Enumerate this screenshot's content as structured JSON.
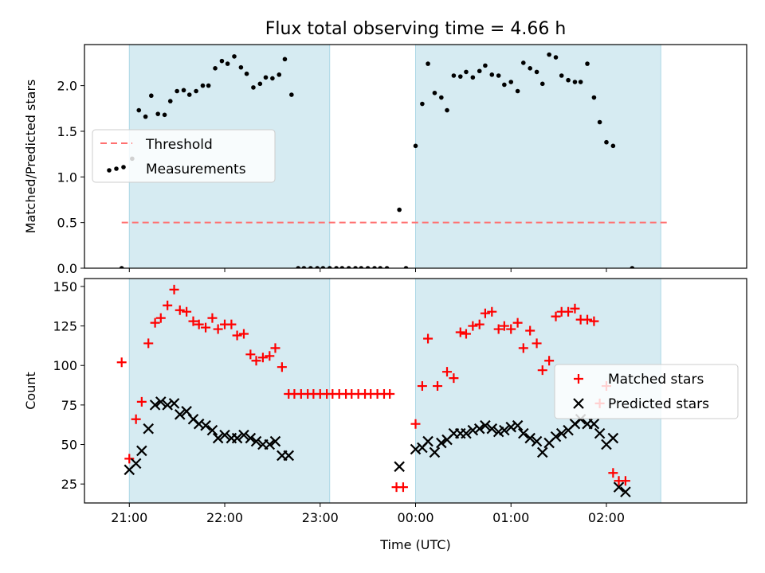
{
  "chart_data": [
    {
      "type": "scatter",
      "title": "Flux total observing time = 4.66 h",
      "xlabel": "",
      "ylabel": "Matched/Predicted stars",
      "xlim": [
        -3.47,
        3.47
      ],
      "ylim": [
        0,
        2.45
      ],
      "yticks": [
        0.0,
        0.5,
        1.0,
        1.5,
        2.0
      ],
      "ytick_labels": [
        "0.0",
        "0.5",
        "1.0",
        "1.5",
        "2.0"
      ],
      "shaded_spans": [
        [
          -3.0,
          -0.9
        ],
        [
          0.0,
          2.57
        ]
      ],
      "threshold": {
        "name": "Threshold",
        "y": 0.5,
        "x": [
          -3.08,
          2.65
        ],
        "color": "#ff7070"
      },
      "series": [
        {
          "name": "Measurements",
          "color": "#000000",
          "points": [
            [
              -3.08,
              0.0
            ],
            [
              -2.97,
              1.2
            ],
            [
              -2.9,
              1.73
            ],
            [
              -2.83,
              1.66
            ],
            [
              -2.77,
              1.89
            ],
            [
              -2.7,
              1.69
            ],
            [
              -2.63,
              1.68
            ],
            [
              -2.57,
              1.83
            ],
            [
              -2.5,
              1.94
            ],
            [
              -2.43,
              1.95
            ],
            [
              -2.37,
              1.9
            ],
            [
              -2.3,
              1.94
            ],
            [
              -2.23,
              2.0
            ],
            [
              -2.17,
              2.0
            ],
            [
              -2.1,
              2.19
            ],
            [
              -2.03,
              2.27
            ],
            [
              -1.97,
              2.24
            ],
            [
              -1.9,
              2.32
            ],
            [
              -1.83,
              2.2
            ],
            [
              -1.77,
              2.13
            ],
            [
              -1.7,
              1.98
            ],
            [
              -1.63,
              2.02
            ],
            [
              -1.57,
              2.09
            ],
            [
              -1.5,
              2.08
            ],
            [
              -1.43,
              2.12
            ],
            [
              -1.37,
              2.29
            ],
            [
              -1.3,
              1.9
            ],
            [
              -1.23,
              0.0
            ],
            [
              -1.17,
              0.0
            ],
            [
              -1.1,
              0.0
            ],
            [
              -1.03,
              0.0
            ],
            [
              -0.97,
              0.0
            ],
            [
              -0.9,
              0.0
            ],
            [
              -0.83,
              0.0
            ],
            [
              -0.77,
              0.0
            ],
            [
              -0.7,
              0.0
            ],
            [
              -0.63,
              0.0
            ],
            [
              -0.57,
              0.0
            ],
            [
              -0.5,
              0.0
            ],
            [
              -0.43,
              0.0
            ],
            [
              -0.37,
              0.0
            ],
            [
              -0.3,
              0.0
            ],
            [
              -0.17,
              0.64
            ],
            [
              -0.1,
              0.0
            ],
            [
              0.0,
              1.34
            ],
            [
              0.07,
              1.8
            ],
            [
              0.13,
              2.24
            ],
            [
              0.2,
              1.92
            ],
            [
              0.27,
              1.87
            ],
            [
              0.33,
              1.73
            ],
            [
              0.4,
              2.11
            ],
            [
              0.47,
              2.1
            ],
            [
              0.53,
              2.15
            ],
            [
              0.6,
              2.09
            ],
            [
              0.67,
              2.16
            ],
            [
              0.73,
              2.22
            ],
            [
              0.8,
              2.12
            ],
            [
              0.87,
              2.11
            ],
            [
              0.93,
              2.01
            ],
            [
              1.0,
              2.04
            ],
            [
              1.07,
              1.94
            ],
            [
              1.13,
              2.25
            ],
            [
              1.2,
              2.19
            ],
            [
              1.27,
              2.15
            ],
            [
              1.33,
              2.02
            ],
            [
              1.4,
              2.34
            ],
            [
              1.47,
              2.31
            ],
            [
              1.53,
              2.11
            ],
            [
              1.6,
              2.06
            ],
            [
              1.67,
              2.04
            ],
            [
              1.73,
              2.04
            ],
            [
              1.8,
              2.24
            ],
            [
              1.87,
              1.87
            ],
            [
              1.93,
              1.6
            ],
            [
              2.0,
              1.38
            ],
            [
              2.07,
              1.34
            ],
            [
              2.27,
              0.0
            ]
          ]
        }
      ],
      "legend": {
        "position": "center-left"
      }
    },
    {
      "type": "scatter",
      "title": "",
      "xlabel": "Time (UTC)",
      "ylabel": "Count",
      "xlim": [
        -3.47,
        3.47
      ],
      "ylim": [
        13,
        155
      ],
      "yticks": [
        25,
        50,
        75,
        100,
        125,
        150
      ],
      "ytick_labels": [
        "25",
        "50",
        "75",
        "100",
        "125",
        "150"
      ],
      "xticks": [
        -3,
        -2,
        -1,
        0,
        1,
        2
      ],
      "xtick_labels": [
        "21:00",
        "22:00",
        "23:00",
        "00:00",
        "01:00",
        "02:00"
      ],
      "shaded_spans": [
        [
          -3.0,
          -0.9
        ],
        [
          0.0,
          2.57
        ]
      ],
      "series": [
        {
          "name": "Matched stars",
          "color": "#ff0000",
          "marker": "plus",
          "points": [
            [
              -3.08,
              102
            ],
            [
              -3.0,
              41
            ],
            [
              -2.93,
              66
            ],
            [
              -2.87,
              77
            ],
            [
              -2.8,
              114
            ],
            [
              -2.73,
              127
            ],
            [
              -2.67,
              130
            ],
            [
              -2.6,
              138
            ],
            [
              -2.53,
              148
            ],
            [
              -2.47,
              135
            ],
            [
              -2.4,
              134
            ],
            [
              -2.33,
              128
            ],
            [
              -2.27,
              126
            ],
            [
              -2.2,
              124
            ],
            [
              -2.13,
              130
            ],
            [
              -2.07,
              123
            ],
            [
              -2.0,
              126
            ],
            [
              -1.93,
              126
            ],
            [
              -1.87,
              119
            ],
            [
              -1.8,
              120
            ],
            [
              -1.73,
              107
            ],
            [
              -1.67,
              103
            ],
            [
              -1.6,
              105
            ],
            [
              -1.53,
              106
            ],
            [
              -1.47,
              111
            ],
            [
              -1.4,
              99
            ],
            [
              -1.33,
              82
            ],
            [
              -1.27,
              82
            ],
            [
              -1.2,
              82
            ],
            [
              -1.13,
              82
            ],
            [
              -1.07,
              82
            ],
            [
              -1.0,
              82
            ],
            [
              -0.93,
              82
            ],
            [
              -0.87,
              82
            ],
            [
              -0.8,
              82
            ],
            [
              -0.73,
              82
            ],
            [
              -0.67,
              82
            ],
            [
              -0.6,
              82
            ],
            [
              -0.53,
              82
            ],
            [
              -0.47,
              82
            ],
            [
              -0.4,
              82
            ],
            [
              -0.33,
              82
            ],
            [
              -0.27,
              82
            ],
            [
              -0.2,
              23
            ],
            [
              -0.13,
              23
            ],
            [
              0.0,
              63
            ],
            [
              0.07,
              87
            ],
            [
              0.13,
              117
            ],
            [
              0.23,
              87
            ],
            [
              0.33,
              96
            ],
            [
              0.4,
              92
            ],
            [
              0.47,
              121
            ],
            [
              0.53,
              120
            ],
            [
              0.6,
              125
            ],
            [
              0.67,
              126
            ],
            [
              0.73,
              133
            ],
            [
              0.8,
              134
            ],
            [
              0.87,
              123
            ],
            [
              0.93,
              125
            ],
            [
              1.0,
              123
            ],
            [
              1.07,
              127
            ],
            [
              1.13,
              111
            ],
            [
              1.2,
              122
            ],
            [
              1.27,
              114
            ],
            [
              1.33,
              97
            ],
            [
              1.4,
              103
            ],
            [
              1.47,
              131
            ],
            [
              1.53,
              134
            ],
            [
              1.6,
              134
            ],
            [
              1.67,
              136
            ],
            [
              1.73,
              129
            ],
            [
              1.8,
              129
            ],
            [
              1.87,
              128
            ],
            [
              1.93,
              76
            ],
            [
              2.0,
              87
            ],
            [
              2.07,
              32
            ],
            [
              2.13,
              27
            ],
            [
              2.2,
              27
            ]
          ]
        },
        {
          "name": "Predicted stars",
          "color": "#000000",
          "marker": "x",
          "points": [
            [
              -3.0,
              34
            ],
            [
              -2.93,
              38
            ],
            [
              -2.87,
              46
            ],
            [
              -2.8,
              60
            ],
            [
              -2.73,
              75
            ],
            [
              -2.67,
              77
            ],
            [
              -2.6,
              75
            ],
            [
              -2.53,
              76
            ],
            [
              -2.47,
              69
            ],
            [
              -2.4,
              71
            ],
            [
              -2.33,
              66
            ],
            [
              -2.27,
              63
            ],
            [
              -2.2,
              62
            ],
            [
              -2.13,
              59
            ],
            [
              -2.07,
              54
            ],
            [
              -2.0,
              56
            ],
            [
              -1.93,
              54
            ],
            [
              -1.87,
              54
            ],
            [
              -1.8,
              56
            ],
            [
              -1.73,
              54
            ],
            [
              -1.67,
              52
            ],
            [
              -1.6,
              50
            ],
            [
              -1.53,
              50
            ],
            [
              -1.47,
              52
            ],
            [
              -1.4,
              43
            ],
            [
              -1.33,
              43
            ],
            [
              -0.17,
              36
            ],
            [
              0.0,
              47
            ],
            [
              0.07,
              48
            ],
            [
              0.13,
              52
            ],
            [
              0.2,
              45
            ],
            [
              0.27,
              51
            ],
            [
              0.33,
              53
            ],
            [
              0.4,
              57
            ],
            [
              0.47,
              57
            ],
            [
              0.53,
              57
            ],
            [
              0.6,
              59
            ],
            [
              0.67,
              60
            ],
            [
              0.73,
              62
            ],
            [
              0.8,
              60
            ],
            [
              0.87,
              58
            ],
            [
              0.93,
              59
            ],
            [
              1.0,
              61
            ],
            [
              1.07,
              62
            ],
            [
              1.13,
              57
            ],
            [
              1.2,
              54
            ],
            [
              1.27,
              52
            ],
            [
              1.33,
              45
            ],
            [
              1.4,
              51
            ],
            [
              1.47,
              55
            ],
            [
              1.53,
              57
            ],
            [
              1.6,
              59
            ],
            [
              1.67,
              63
            ],
            [
              1.73,
              66
            ],
            [
              1.8,
              63
            ],
            [
              1.87,
              63
            ],
            [
              1.93,
              57
            ],
            [
              2.0,
              50
            ],
            [
              2.07,
              54
            ],
            [
              2.13,
              23
            ],
            [
              2.2,
              20
            ]
          ]
        }
      ],
      "legend": {
        "position": "center-right"
      }
    }
  ]
}
